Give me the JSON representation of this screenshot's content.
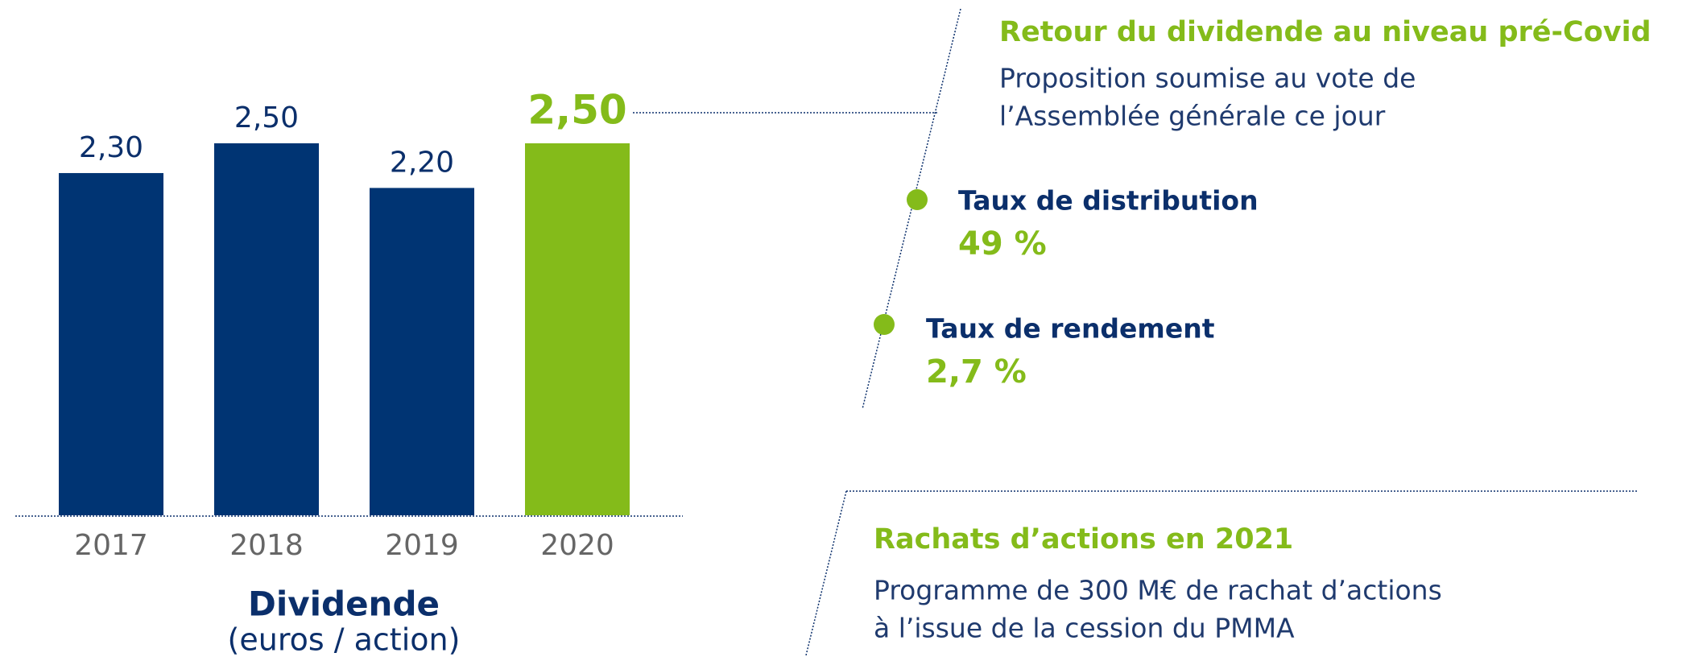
{
  "chart_data": {
    "type": "bar",
    "title": "Dividende",
    "subtitle": "(euros / action)",
    "categories": [
      "2017",
      "2018",
      "2019",
      "2020"
    ],
    "values": [
      2.3,
      2.5,
      2.2,
      2.5
    ],
    "value_labels": [
      "2,30",
      "2,50",
      "2,20",
      "2,50"
    ],
    "colors": [
      "#003473",
      "#003473",
      "#003473",
      "#84bb1a"
    ]
  },
  "highlights": {
    "title": "Retour du dividende au niveau pré-Covid",
    "lines": [
      "Proposition soumise au vote de",
      "l’Assemblée générale ce jour"
    ],
    "items": [
      {
        "label": "Taux de distribution",
        "value": "49 %"
      },
      {
        "label": "Taux de rendement",
        "value": "2,7 %"
      }
    ]
  },
  "buyback": {
    "title": "Rachats d’actions en 2021",
    "lines": [
      "Programme de 300 M€ de rachat d’actions",
      "à l’issue de la cession du PMMA"
    ]
  }
}
